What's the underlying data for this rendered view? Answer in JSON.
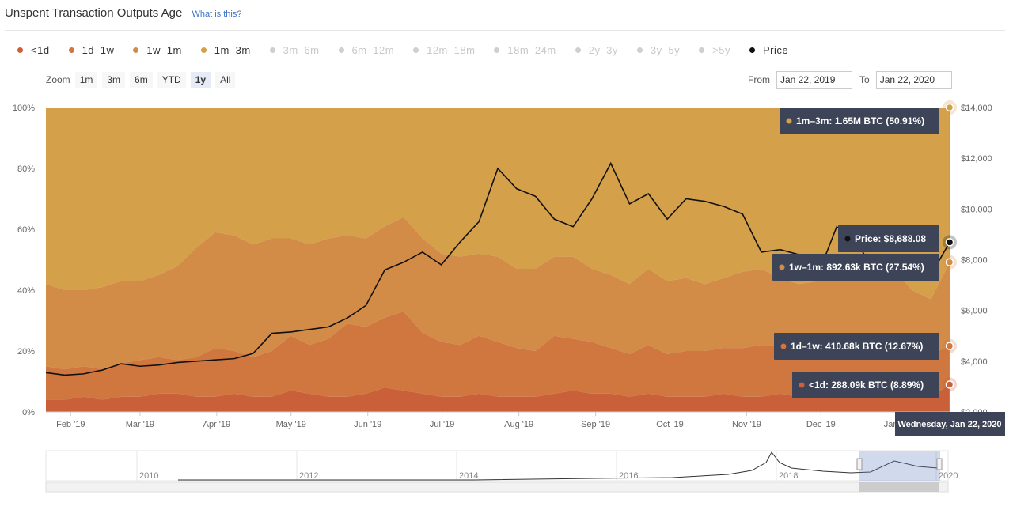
{
  "header": {
    "title": "Unspent Transaction Outputs Age",
    "help_link": "What is this?"
  },
  "legend": [
    {
      "label": "<1d",
      "color": "#c9603a",
      "active": true
    },
    {
      "label": "1d–1w",
      "color": "#d0763f",
      "active": true
    },
    {
      "label": "1w–1m",
      "color": "#d28c47",
      "active": true
    },
    {
      "label": "1m–3m",
      "color": "#d4a04a",
      "active": true
    },
    {
      "label": "3m–6m",
      "color": "#cfcfcf",
      "active": false
    },
    {
      "label": "6m–12m",
      "color": "#cfcfcf",
      "active": false
    },
    {
      "label": "12m–18m",
      "color": "#cfcfcf",
      "active": false
    },
    {
      "label": "18m–24m",
      "color": "#cfcfcf",
      "active": false
    },
    {
      "label": "2y–3y",
      "color": "#cfcfcf",
      "active": false
    },
    {
      "label": "3y–5y",
      "color": "#cfcfcf",
      "active": false
    },
    {
      "label": ">5y",
      "color": "#cfcfcf",
      "active": false
    },
    {
      "label": "Price",
      "color": "#111111",
      "active": true
    }
  ],
  "zoom": {
    "label": "Zoom",
    "buttons": [
      "1m",
      "3m",
      "6m",
      "YTD",
      "1y",
      "All"
    ],
    "active": "1y"
  },
  "range": {
    "from_label": "From",
    "from": "Jan 22, 2019",
    "to_label": "To",
    "to": "Jan 22, 2020"
  },
  "chart_data": {
    "type": "area",
    "stacking": "percent",
    "title": "Unspent Transaction Outputs Age",
    "x_labels": [
      "Feb '19",
      "Mar '19",
      "Apr '19",
      "May '19",
      "Jun '19",
      "Jul '19",
      "Aug '19",
      "Sep '19",
      "Oct '19",
      "Nov '19",
      "Dec '19",
      "Jan '20"
    ],
    "y_left_ticks": [
      "0%",
      "20%",
      "40%",
      "60%",
      "80%",
      "100%"
    ],
    "y_right_ticks": [
      "$2,000",
      "$4,000",
      "$6,000",
      "$8,000",
      "$10,000",
      "$12,000",
      "$14,000"
    ],
    "y_left_range": [
      0,
      100
    ],
    "y_right_range": [
      2000,
      14000
    ],
    "x_range": [
      "2019-01-22",
      "2020-01-22"
    ],
    "series": [
      {
        "name": "<1d",
        "color": "#c9603a",
        "values_pct": [
          4,
          4,
          5,
          4,
          5,
          5,
          6,
          6,
          5,
          5,
          6,
          5,
          5,
          7,
          6,
          5,
          5,
          6,
          8,
          7,
          6,
          5,
          5,
          6,
          5,
          5,
          5,
          6,
          7,
          6,
          6,
          5,
          6,
          5,
          5,
          5,
          6,
          5,
          5,
          6,
          5,
          6,
          6,
          6,
          6,
          7,
          5,
          5,
          9
        ]
      },
      {
        "name": "1d–1w",
        "color": "#d0763f",
        "values_pct": [
          11,
          10,
          10,
          10,
          11,
          12,
          12,
          11,
          13,
          16,
          14,
          13,
          15,
          18,
          16,
          19,
          24,
          22,
          23,
          26,
          20,
          18,
          17,
          19,
          18,
          16,
          15,
          19,
          17,
          17,
          15,
          14,
          16,
          14,
          15,
          15,
          15,
          16,
          17,
          16,
          16,
          15,
          17,
          17,
          19,
          18,
          15,
          14,
          12.67
        ]
      },
      {
        "name": "1w–1m",
        "color": "#d28c47",
        "values_pct": [
          27,
          26,
          25,
          27,
          27,
          26,
          27,
          31,
          36,
          38,
          38,
          37,
          37,
          32,
          33,
          33,
          29,
          29,
          30,
          31,
          31,
          29,
          29,
          27,
          28,
          26,
          27,
          26,
          27,
          24,
          24,
          23,
          25,
          24,
          24,
          22,
          23,
          25,
          25,
          22,
          21,
          22,
          21,
          20,
          19,
          22,
          20,
          18,
          27.54
        ]
      },
      {
        "name": "1m–3m",
        "color": "#d4a04a",
        "values_pct": [
          58,
          60,
          60,
          59,
          57,
          57,
          55,
          52,
          46,
          41,
          42,
          45,
          43,
          43,
          45,
          43,
          42,
          43,
          39,
          36,
          43,
          48,
          49,
          48,
          49,
          53,
          53,
          49,
          49,
          53,
          55,
          58,
          53,
          57,
          56,
          58,
          56,
          54,
          53,
          56,
          58,
          57,
          56,
          57,
          56,
          53,
          60,
          63,
          50.91
        ]
      },
      {
        "name": "Price",
        "color": "#111111",
        "axis": "right",
        "values_usd": [
          3550,
          3450,
          3500,
          3650,
          3900,
          3800,
          3850,
          3950,
          4000,
          4050,
          4100,
          4300,
          5100,
          5150,
          5250,
          5350,
          5700,
          6200,
          7600,
          7900,
          8300,
          7800,
          8700,
          9500,
          11600,
          10800,
          10500,
          9600,
          9300,
          10400,
          11800,
          10200,
          10600,
          9600,
          10400,
          10300,
          10100,
          9800,
          8300,
          8400,
          8200,
          7400,
          9300,
          8800,
          7500,
          7200,
          7300,
          7400,
          8688.08
        ]
      }
    ],
    "tooltips": [
      {
        "series": "1m–3m",
        "text": "1m–3m: 1.65M BTC (50.91%)"
      },
      {
        "series": "Price",
        "text": "Price: $8,688.08"
      },
      {
        "series": "1w–1m",
        "text": "1w–1m: 892.63k BTC (27.54%)"
      },
      {
        "series": "1d–1w",
        "text": "1d–1w: 410.68k BTC (12.67%)"
      },
      {
        "series": "<1d",
        "text": "<1d: 288.09k BTC (8.89%)"
      }
    ],
    "crosshair_label": "Wednesday, Jan 22, 2020",
    "navigator": {
      "year_labels": [
        "2010",
        "2012",
        "2014",
        "2016",
        "2018",
        "2020"
      ]
    }
  }
}
